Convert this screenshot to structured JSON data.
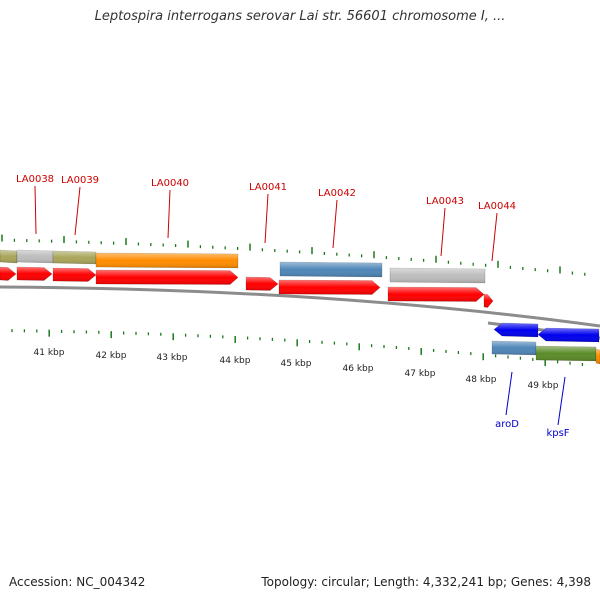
{
  "title": "Leptospira interrogans serovar Lai str. 56601 chromosome I, ...",
  "footer": {
    "accession": "Accession: NC_004342",
    "summary": "Topology: circular; Length: 4,332,241 bp; Genes: 4,398"
  },
  "colors": {
    "red": "#ff0000",
    "blue": "#0000ee",
    "steel": "#4f86b8",
    "gray": "#bdbdbd",
    "olive": "#a9a55a",
    "orange": "#ff8c00",
    "green": "#5b8c28",
    "backbone": "#8c8c8c",
    "tick": "#1a7a1a",
    "upper_label": "#cc0000",
    "lower_label": "#0000cc"
  },
  "kbp_labels": [
    "41 kbp",
    "42 kbp",
    "43 kbp",
    "44 kbp",
    "45 kbp",
    "46 kbp",
    "47 kbp",
    "48 kbp",
    "49 kbp"
  ],
  "genes_upper": [
    "LA0038",
    "LA0039",
    "LA0040",
    "LA0041",
    "LA0042",
    "LA0043",
    "LA0044"
  ],
  "genes_lower": [
    "aroD",
    "kpsF"
  ]
}
